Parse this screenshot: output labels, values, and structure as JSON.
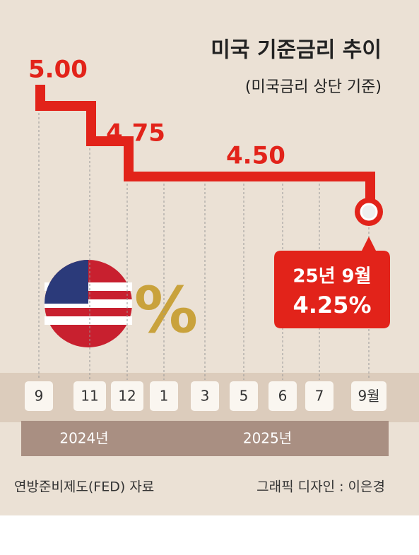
{
  "chart_data": {
    "type": "line",
    "title": "미국 기준금리 추이",
    "subtitle": "(미국금리 상단 기준)",
    "categories": [
      "9",
      "11",
      "12",
      "1",
      "3",
      "5",
      "6",
      "7",
      "9월"
    ],
    "values": [
      5.0,
      4.75,
      4.5,
      4.5,
      4.5,
      4.5,
      4.5,
      4.5,
      4.25
    ],
    "value_labels": [
      "5.00",
      "4.75",
      "4.50",
      null,
      null,
      null,
      null,
      null,
      "4.25%"
    ],
    "color": "#e2231a",
    "callout": "25년 9월",
    "years": [
      "2024년",
      "2025년"
    ],
    "source": "연방준비제도(FED) 자료",
    "credit": "그래픽 디자인 : 이은경"
  }
}
